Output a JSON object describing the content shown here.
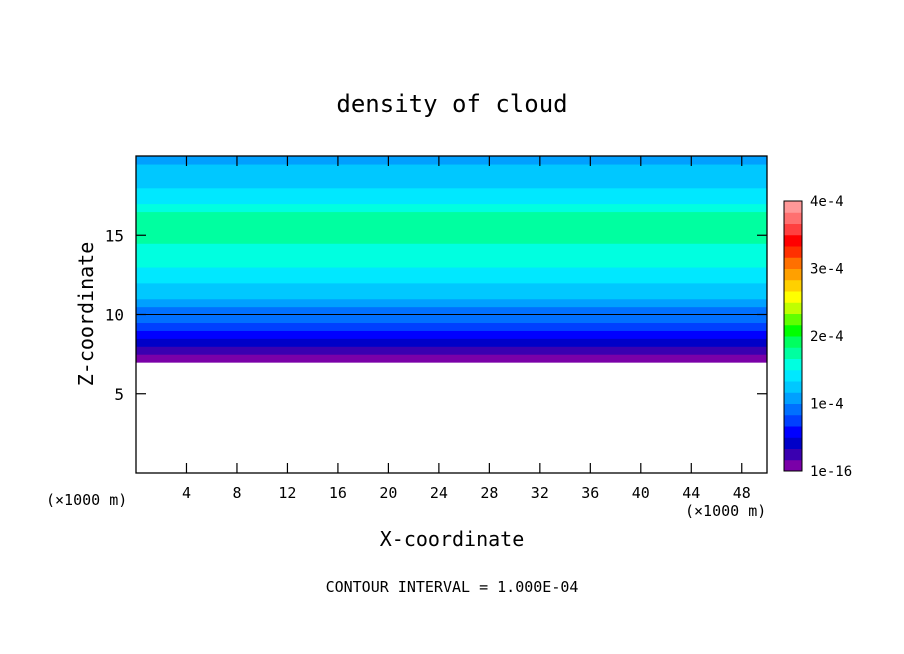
{
  "chart_data": {
    "type": "heatmap",
    "title": "density of cloud",
    "xlabel": "X-coordinate",
    "ylabel": "Z-coordinate",
    "x_unit_label": "(×1000 m)",
    "y_unit_label": "(×1000 m)",
    "xlim": [
      0,
      50
    ],
    "ylim": [
      0,
      20
    ],
    "x_ticks": [
      4,
      8,
      12,
      16,
      20,
      24,
      28,
      32,
      36,
      40,
      44,
      48
    ],
    "y_ticks": [
      5,
      10,
      15
    ],
    "footer": "CONTOUR INTERVAL = 1.000E-04",
    "colorbar": {
      "min": 1e-16,
      "max": 0.0004,
      "tick_labels": [
        "1e-16",
        "1e-4",
        "2e-4",
        "3e-4",
        "4e-4"
      ],
      "tick_values": [
        1e-16,
        0.0001,
        0.0002,
        0.0003,
        0.0004
      ],
      "colors": [
        "#7a00a8",
        "#3a00b0",
        "#0000c8",
        "#0000ff",
        "#0040ff",
        "#0070ff",
        "#00a0ff",
        "#00c8ff",
        "#00e8ff",
        "#00ffe0",
        "#00ffa0",
        "#00ff60",
        "#00ff00",
        "#60ff00",
        "#c0ff00",
        "#ffff00",
        "#ffd000",
        "#ffa000",
        "#ff7000",
        "#ff3000",
        "#ff0000",
        "#ff4040",
        "#ff7070",
        "#ff9898"
      ]
    },
    "contour_line_value": 0.0001,
    "profile": [
      {
        "z": 7.0,
        "value": 5e-06
      },
      {
        "z": 7.5,
        "value": 2e-05
      },
      {
        "z": 8.0,
        "value": 4e-05
      },
      {
        "z": 8.5,
        "value": 5.5e-05
      },
      {
        "z": 9.0,
        "value": 7e-05
      },
      {
        "z": 9.5,
        "value": 8.8e-05
      },
      {
        "z": 10.0,
        "value": 0.0001
      },
      {
        "z": 10.5,
        "value": 0.000108
      },
      {
        "z": 11.0,
        "value": 0.000118
      },
      {
        "z": 11.5,
        "value": 0.000128
      },
      {
        "z": 12.0,
        "value": 0.000138
      },
      {
        "z": 12.5,
        "value": 0.000148
      },
      {
        "z": 13.0,
        "value": 0.000158
      },
      {
        "z": 13.5,
        "value": 0.000165
      },
      {
        "z": 14.5,
        "value": 0.00017
      },
      {
        "z": 16.0,
        "value": 0.000168
      },
      {
        "z": 16.5,
        "value": 0.00016
      },
      {
        "z": 17.0,
        "value": 0.000148
      },
      {
        "z": 17.5,
        "value": 0.000138
      },
      {
        "z": 18.0,
        "value": 0.00013
      },
      {
        "z": 18.5,
        "value": 0.00012
      },
      {
        "z": 19.5,
        "value": 0.000115
      },
      {
        "z": 20.0,
        "value": 0.000112
      }
    ],
    "cloud_base_z": 7.0
  }
}
